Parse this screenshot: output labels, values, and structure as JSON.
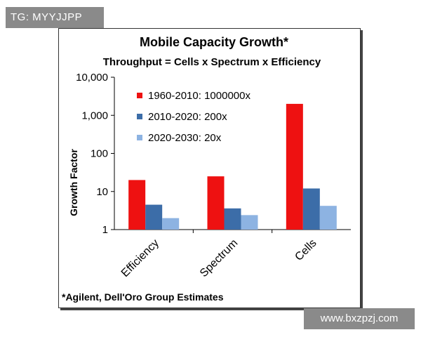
{
  "watermarks": {
    "top": "TG: MYYJJPP",
    "bottom": "www.bxzpzj.com"
  },
  "chart_data": {
    "type": "bar",
    "title": "Mobile Capacity Growth*",
    "subtitle": "Throughput = Cells x Spectrum x Efficiency",
    "ylabel": "Growth Factor",
    "xlabel": "",
    "yscale": "log",
    "ylim": [
      1,
      10000
    ],
    "yticks": [
      {
        "value": 1,
        "label": "1"
      },
      {
        "value": 10,
        "label": "10"
      },
      {
        "value": 100,
        "label": "100"
      },
      {
        "value": 1000,
        "label": "1,000"
      },
      {
        "value": 10000,
        "label": "10,000"
      }
    ],
    "categories": [
      "Efficiency",
      "Spectrum",
      "Cells"
    ],
    "series": [
      {
        "name": "1960-2010: 1000000x",
        "color": "#ee1111",
        "values": [
          20,
          25,
          2000
        ]
      },
      {
        "name": "2010-2020: 200x",
        "color": "#3c6da8",
        "values": [
          4.5,
          3.6,
          12
        ]
      },
      {
        "name": "2020-2030: 20x",
        "color": "#8db3e2",
        "values": [
          2,
          2.4,
          4.2
        ]
      }
    ],
    "legend_position": "top-left",
    "footnote": "*Agilent, Dell'Oro Group Estimates"
  }
}
